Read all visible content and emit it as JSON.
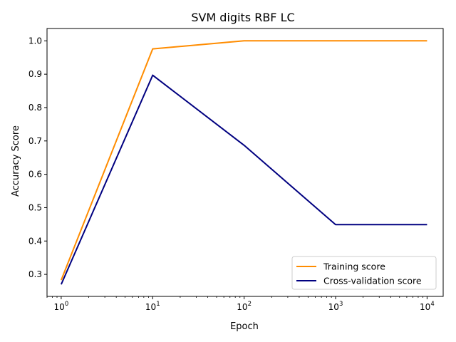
{
  "chart_data": {
    "type": "line",
    "title": "SVM digits RBF LC",
    "xlabel": "Epoch",
    "ylabel": "Accuracy Score",
    "x_scale": "log",
    "xlim": [
      0.7,
      15000
    ],
    "ylim": [
      0.234,
      1.037
    ],
    "x": [
      1,
      10,
      100,
      1000,
      10000
    ],
    "x_ticks": [
      {
        "value": 1,
        "base": "10",
        "exp": "0"
      },
      {
        "value": 10,
        "base": "10",
        "exp": "1"
      },
      {
        "value": 100,
        "base": "10",
        "exp": "2"
      },
      {
        "value": 1000,
        "base": "10",
        "exp": "3"
      },
      {
        "value": 10000,
        "base": "10",
        "exp": "4"
      }
    ],
    "y_ticks": [
      {
        "value": 0.3,
        "label": "0.3"
      },
      {
        "value": 0.4,
        "label": "0.4"
      },
      {
        "value": 0.5,
        "label": "0.5"
      },
      {
        "value": 0.6,
        "label": "0.6"
      },
      {
        "value": 0.7,
        "label": "0.7"
      },
      {
        "value": 0.8,
        "label": "0.8"
      },
      {
        "value": 0.9,
        "label": "0.9"
      },
      {
        "value": 1.0,
        "label": "1.0"
      }
    ],
    "series": [
      {
        "name": "Training score",
        "color": "#ff8c00",
        "values": [
          0.283,
          0.976,
          1.0,
          1.0,
          1.0
        ]
      },
      {
        "name": "Cross-validation score",
        "color": "#000080",
        "values": [
          0.27,
          0.897,
          0.687,
          0.449,
          0.449
        ]
      }
    ],
    "grid": false,
    "legend": "bottom-right"
  }
}
